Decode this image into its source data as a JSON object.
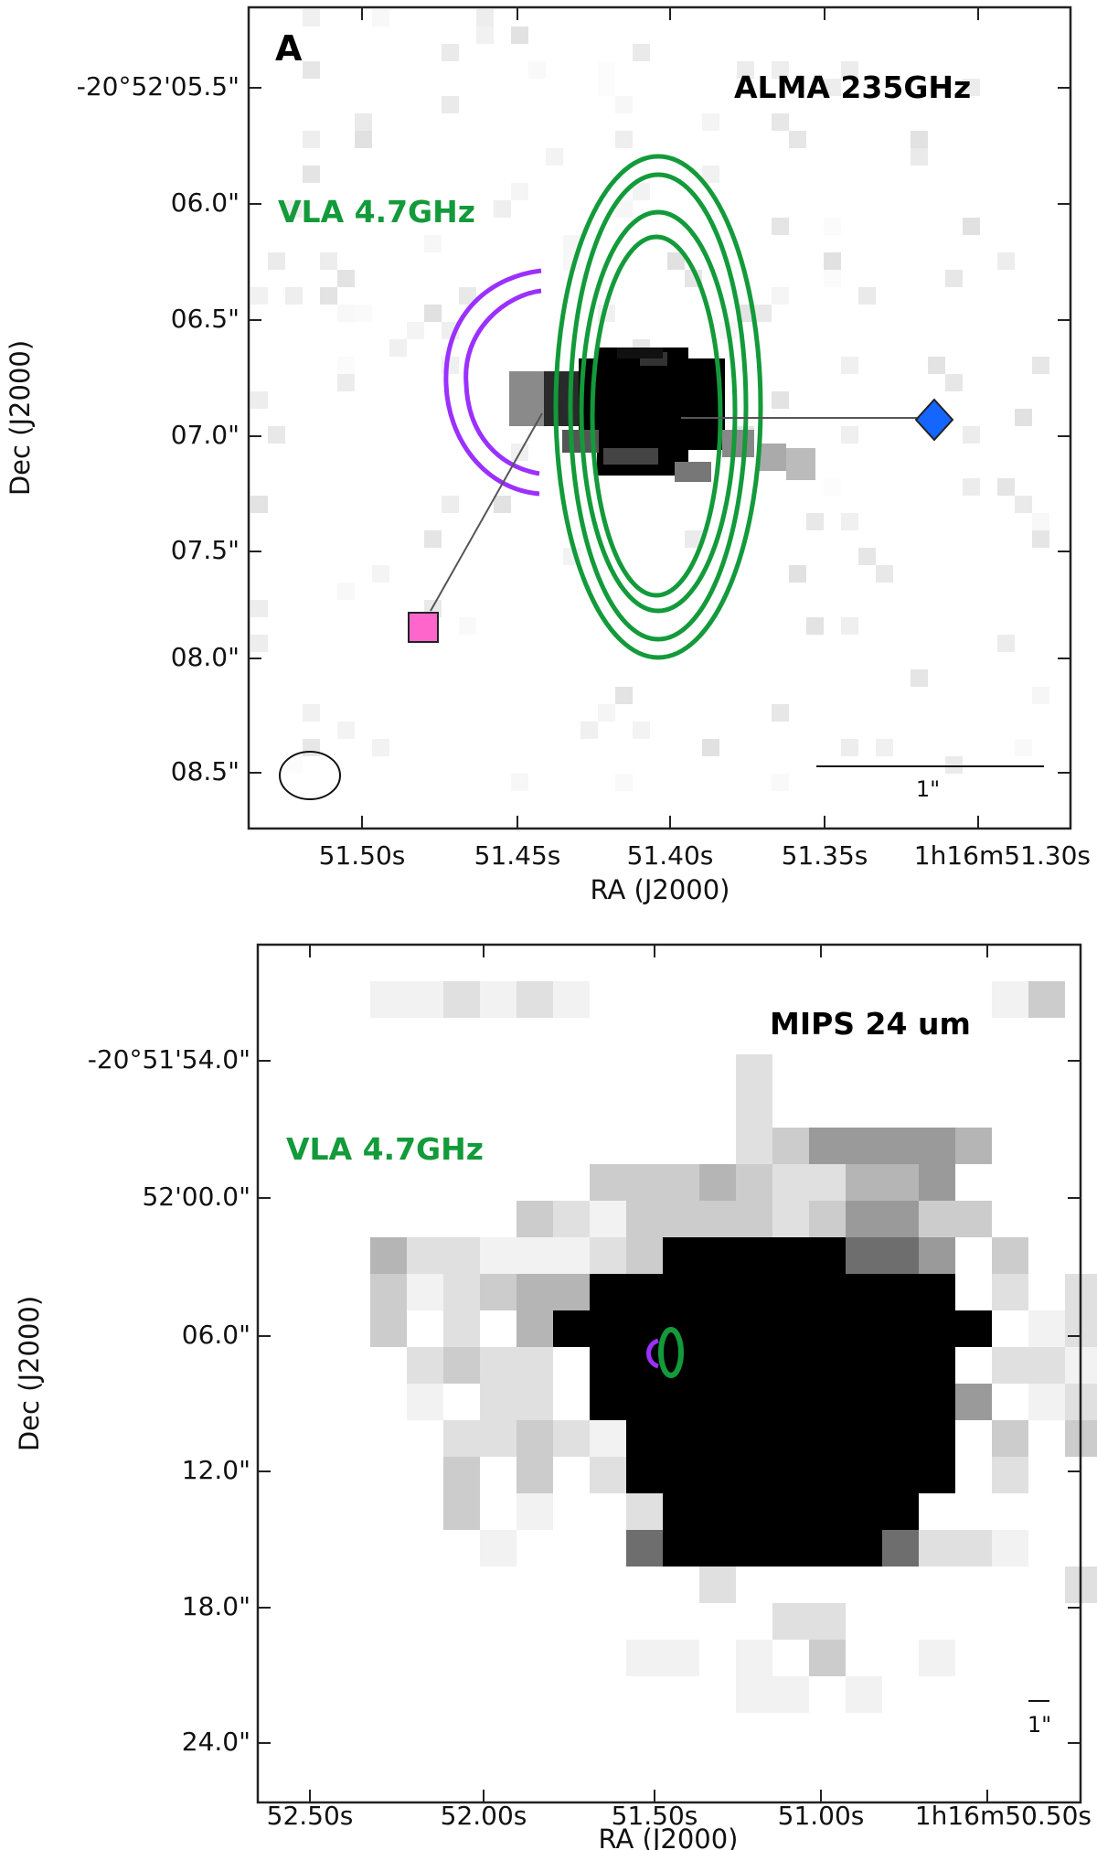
{
  "panel_a": {
    "letter": "A",
    "instrument": "ALMA 235GHz",
    "overlay": "VLA 4.7GHz",
    "xlabel": "RA (J2000)",
    "ylabel": "Dec (J2000)",
    "xticks": [
      "51.50s",
      "51.45s",
      "51.40s",
      "51.35s",
      "1h16m51.30s"
    ],
    "yticks": [
      "-20°52'05.5\"",
      "06.0\"",
      "06.5\"",
      "07.0\"",
      "07.5\"",
      "08.0\"",
      "08.5\""
    ],
    "scalebar": "1\"",
    "colors": {
      "vla": "#139a3a",
      "purple": "#9b30ff",
      "square": "#ff66cc",
      "diamond": "#1565ff"
    }
  },
  "panel_b": {
    "instrument": "MIPS 24 um",
    "overlay": "VLA 4.7GHz",
    "xlabel": "RA (J2000)",
    "ylabel": "Dec (J2000)",
    "xticks": [
      "52.50s",
      "52.00s",
      "51.50s",
      "51.00s",
      "1h16m50.50s"
    ],
    "yticks": [
      "-20°51'54.0\"",
      "52'00.0\"",
      "06.0\"",
      "12.0\"",
      "18.0\"",
      "24.0\""
    ],
    "scalebar": "1\""
  }
}
